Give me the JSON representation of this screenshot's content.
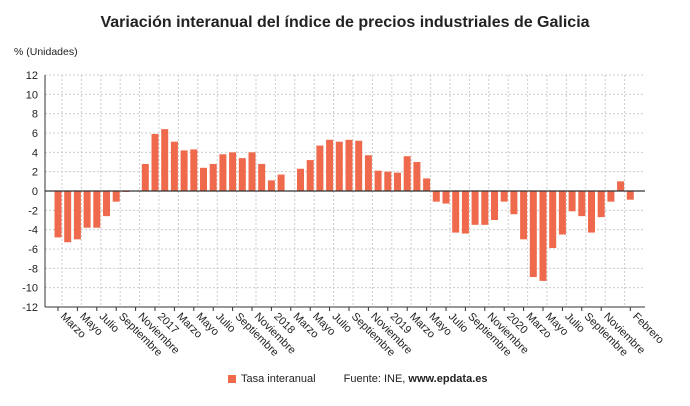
{
  "chart_data": {
    "type": "bar",
    "title": "Variación interanual del índice de precios industriales de Galicia",
    "ylabel": "% (Unidades)",
    "ylim": [
      -12,
      12
    ],
    "yticks": [
      12,
      10,
      8,
      6,
      4,
      2,
      0,
      -2,
      -4,
      -6,
      -8,
      -10,
      -12
    ],
    "grid": true,
    "legend_position": "bottom",
    "color": "#ef6a4c",
    "xtick_labels": [
      "Marzo",
      "Mayo",
      "Julio",
      "Septiembre",
      "Noviembre",
      "2017",
      "Marzo",
      "Mayo",
      "Julio",
      "Septiembre",
      "Noviembre",
      "2018",
      "Marzo",
      "Mayo",
      "Julio",
      "Septiembre",
      "Noviembre",
      "2019",
      "Marzo",
      "Mayo",
      "Julio",
      "Septiembre",
      "Noviembre",
      "2020",
      "Marzo",
      "Mayo",
      "Julio",
      "Septiembre",
      "Noviembre",
      "Febrero"
    ],
    "series": [
      {
        "name": "Tasa interanual",
        "values": [
          -4.8,
          -5.3,
          -5.0,
          -3.8,
          -3.8,
          -2.6,
          -1.1,
          -0.1,
          0.0,
          2.8,
          5.9,
          6.4,
          5.1,
          4.2,
          4.3,
          2.4,
          2.8,
          3.8,
          4.0,
          3.4,
          4.0,
          2.8,
          1.1,
          1.7,
          0.05,
          2.3,
          3.2,
          4.7,
          5.3,
          5.1,
          5.3,
          5.2,
          3.7,
          2.1,
          2.0,
          1.9,
          3.6,
          3.0,
          1.3,
          -1.1,
          -1.3,
          -4.3,
          -4.4,
          -3.5,
          -3.5,
          -3.0,
          -1.1,
          -2.4,
          -5.0,
          -8.9,
          -9.3,
          -5.9,
          -4.5,
          -2.1,
          -2.6,
          -4.3,
          -2.7,
          -1.1,
          1.0,
          -0.9
        ]
      }
    ]
  },
  "legend": {
    "label": "Tasa interanual"
  },
  "source": {
    "prefix": "Fuente: INE, ",
    "site": "www.epdata.es"
  }
}
